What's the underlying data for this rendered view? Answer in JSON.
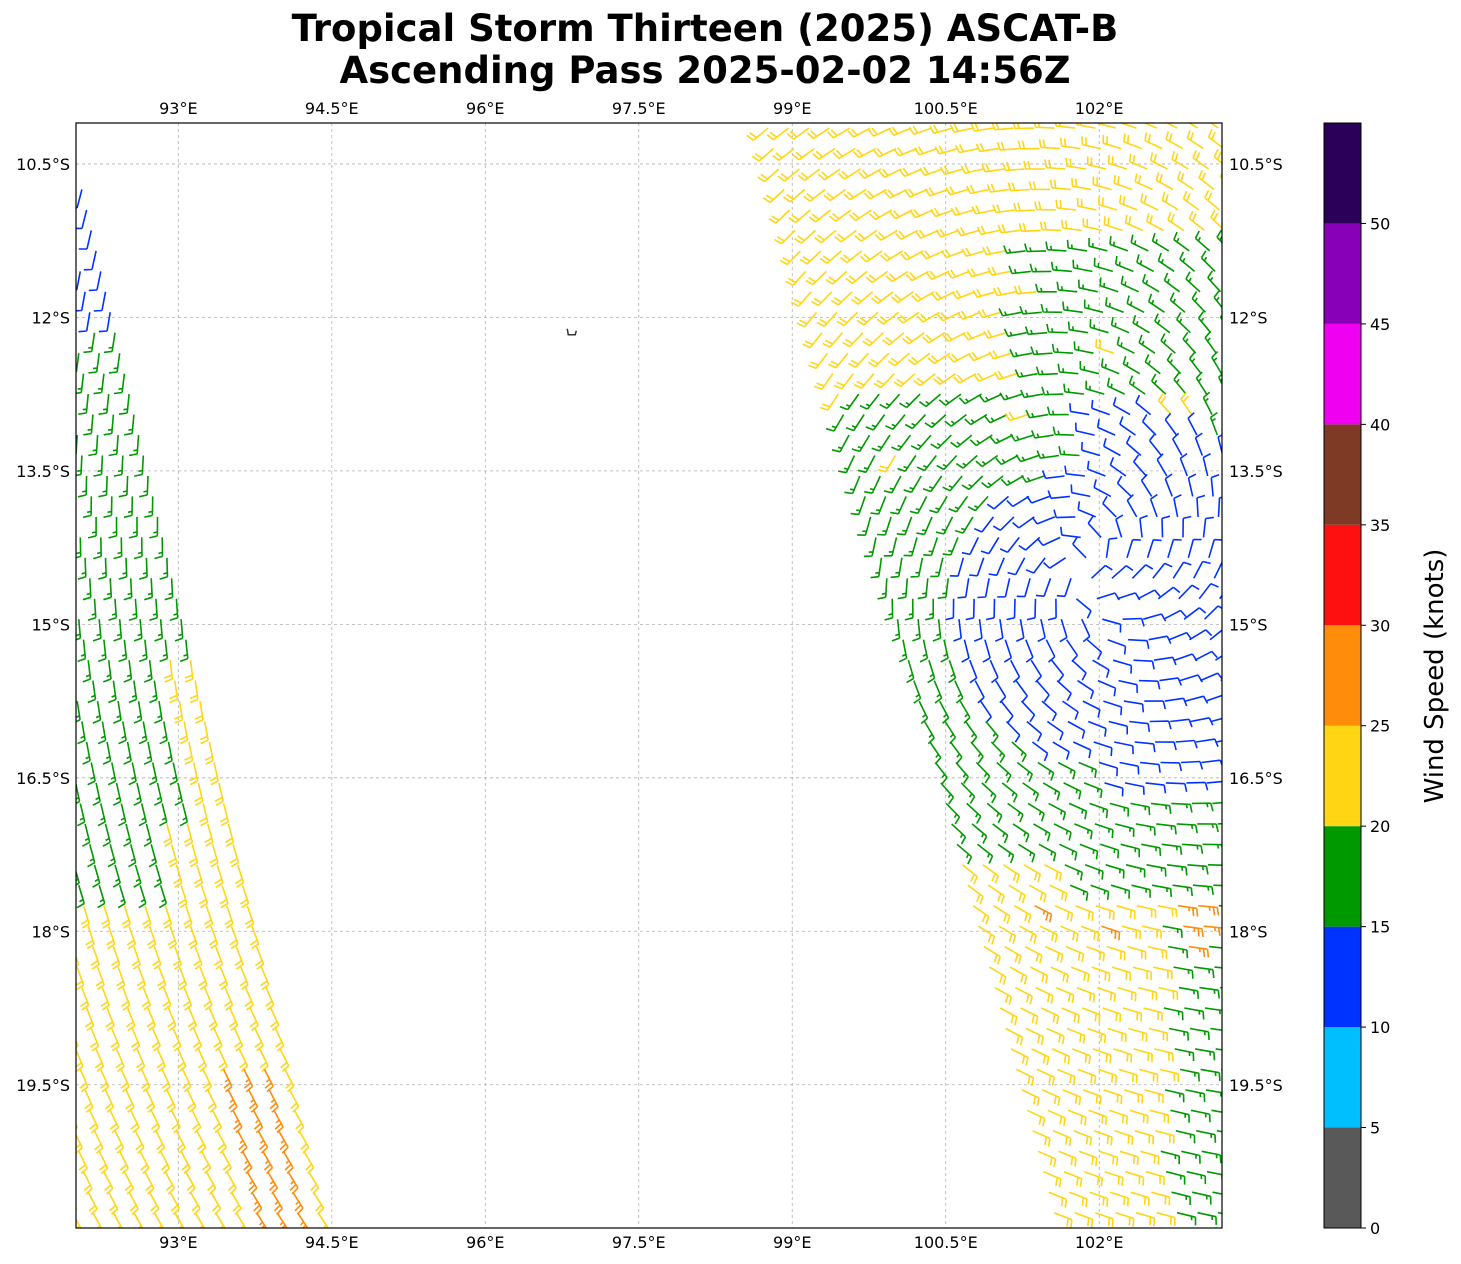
{
  "title_line1": "Tropical Storm Thirteen (2025) ASCAT-B",
  "title_line2": "Ascending Pass 2025-02-02 14:56Z",
  "chart_data": {
    "type": "map-wind-barbs",
    "title": "Tropical Storm Thirteen (2025) ASCAT-B Ascending Pass 2025-02-02 14:56Z",
    "lon_range_deg_e": [
      92.0,
      103.2
    ],
    "lat_range_deg_s": [
      10.1,
      20.9
    ],
    "lon_ticks": [
      93,
      94.5,
      96,
      97.5,
      99,
      100.5,
      102
    ],
    "lon_tick_labels": [
      "93°E",
      "94.5°E",
      "96°E",
      "97.5°E",
      "99°E",
      "100.5°E",
      "102°E"
    ],
    "lat_ticks": [
      10.5,
      12,
      13.5,
      15,
      16.5,
      18,
      19.5
    ],
    "lat_tick_labels": [
      "10.5°S",
      "12°S",
      "13.5°S",
      "15°S",
      "16.5°S",
      "18°S",
      "19.5°S"
    ],
    "grid": true,
    "island": {
      "name_hidden": true,
      "lon": 96.85,
      "lat_s": 12.15
    },
    "storm_center": {
      "lon": 101.9,
      "lat_s": 14.9
    },
    "swaths": [
      {
        "name": "west",
        "east_edge_lon_at_lat": [
          [
            10.5,
            92.0
          ],
          [
            20.9,
            94.4
          ]
        ],
        "top_lat_s": 10.6
      },
      {
        "name": "east",
        "west_edge_lon_at_lat": [
          [
            10.1,
            98.75
          ],
          [
            20.9,
            101.6
          ]
        ]
      }
    ],
    "grid_spacing_deg": 0.2,
    "colorbar": {
      "label": "Wind Speed (knots)",
      "bounds": [
        0,
        5,
        10,
        15,
        20,
        25,
        30,
        35,
        40,
        45,
        50,
        55
      ],
      "tick_labels": [
        "0",
        "5",
        "10",
        "15",
        "20",
        "25",
        "30",
        "35",
        "40",
        "45",
        "50"
      ],
      "colors": [
        "#595959",
        "#00bfff",
        "#0033ff",
        "#009900",
        "#ffd514",
        "#ff8c0a",
        "#ff1010",
        "#7f3a26",
        "#f000f0",
        "#8800b8",
        "#2b0058"
      ]
    }
  }
}
